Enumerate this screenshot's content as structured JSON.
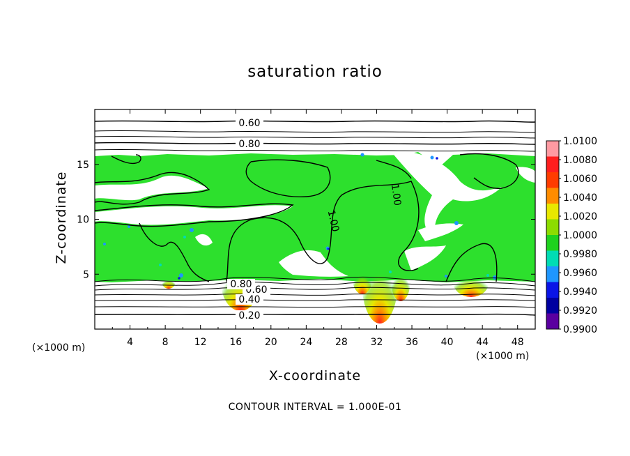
{
  "chart_data": {
    "type": "heatmap",
    "title": "saturation ratio",
    "xlabel": "X-coordinate",
    "ylabel": "Z-coordinate",
    "x_unit_label_left": "(×1000 m)",
    "x_unit_label_right": "(×1000 m)",
    "footer": "CONTOUR INTERVAL = 1.000E-01",
    "xlim": [
      0,
      50
    ],
    "ylim": [
      0,
      20
    ],
    "x_ticks": [
      "4",
      "8",
      "12",
      "16",
      "20",
      "24",
      "28",
      "32",
      "36",
      "40",
      "44",
      "48"
    ],
    "y_ticks": [
      "5",
      "10",
      "15"
    ],
    "colorbar": {
      "labels": [
        "1.0100",
        "1.0080",
        "1.0060",
        "1.0040",
        "1.0020",
        "1.0000",
        "0.9980",
        "0.9960",
        "0.9940",
        "0.9920",
        "0.9900"
      ],
      "colors": [
        "#ff9aa2",
        "#ff1e1e",
        "#ff3c00",
        "#ff8c00",
        "#e8e800",
        "#8cdc00",
        "#1ed21e",
        "#00dcb4",
        "#1e96ff",
        "#0a14e6",
        "#0000a0",
        "#5a00a0"
      ]
    },
    "contour_labels": [
      "0.60",
      "0.80",
      "0.20",
      "0.40",
      "0.60",
      "0.80",
      "1.00",
      "1.00"
    ],
    "field_description_colors": {
      "dominant": "#2de02d",
      "unsaturated": "#ffffff"
    }
  }
}
